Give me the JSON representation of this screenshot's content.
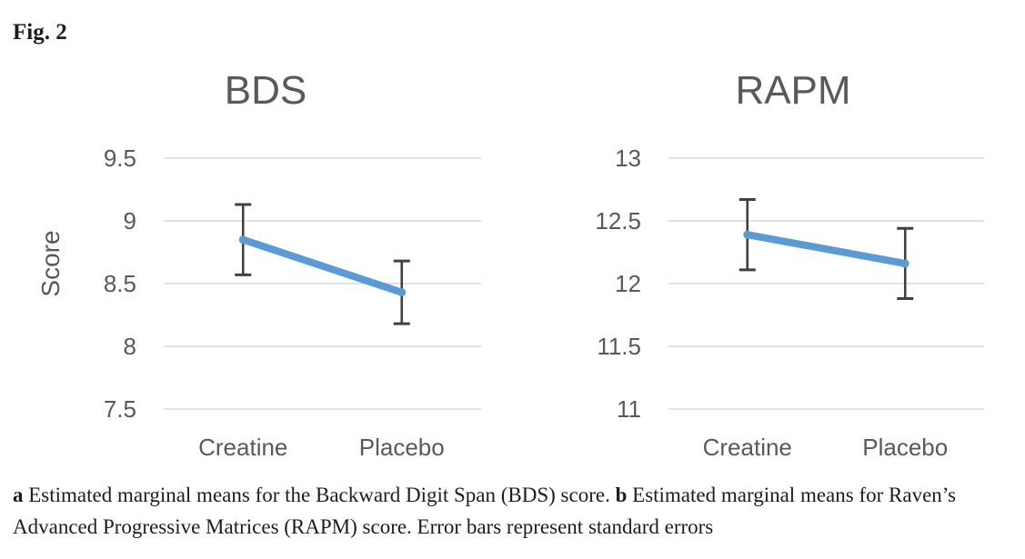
{
  "figure_label": "Fig. 2",
  "colors": {
    "line": "#5B9BD5",
    "error_bar": "#404040",
    "gridline": "#D9D9D9",
    "chart_text": "#595959",
    "caption_text": "#1D1D1D"
  },
  "caption": {
    "part_a_label": "a",
    "part_a_text": "Estimated marginal means for the Backward Digit Span (BDS) score.",
    "part_b_label": "b",
    "part_b_text": "Estimated marginal means for Raven’s Advanced Progressive Matrices (RAPM) score. Error bars represent standard errors"
  },
  "chart_data": [
    {
      "type": "line",
      "title": "BDS",
      "ylabel": "Score",
      "xlabel": "",
      "categories": [
        "Creatine",
        "Placebo"
      ],
      "series": [
        {
          "name": "Estimated marginal mean",
          "values": [
            8.85,
            8.43
          ],
          "errors": [
            0.28,
            0.25
          ]
        }
      ],
      "yticks": [
        9.5,
        9.0,
        8.5,
        8.0,
        7.5
      ],
      "ytick_labels": [
        "9.5",
        "9",
        "8.5",
        "8",
        "7.5"
      ],
      "ylim": [
        7.5,
        9.5
      ],
      "grid": true,
      "legend": false,
      "error_bars": "standard errors"
    },
    {
      "type": "line",
      "title": "RAPM",
      "ylabel": "",
      "xlabel": "",
      "categories": [
        "Creatine",
        "Placebo"
      ],
      "series": [
        {
          "name": "Estimated marginal mean",
          "values": [
            12.39,
            12.16
          ],
          "errors": [
            0.28,
            0.28
          ]
        }
      ],
      "yticks": [
        13.0,
        12.5,
        12.0,
        11.5,
        11.0
      ],
      "ytick_labels": [
        "13",
        "12.5",
        "12",
        "11.5",
        "11"
      ],
      "ylim": [
        11,
        13
      ],
      "grid": true,
      "legend": false,
      "error_bars": "standard errors"
    }
  ]
}
